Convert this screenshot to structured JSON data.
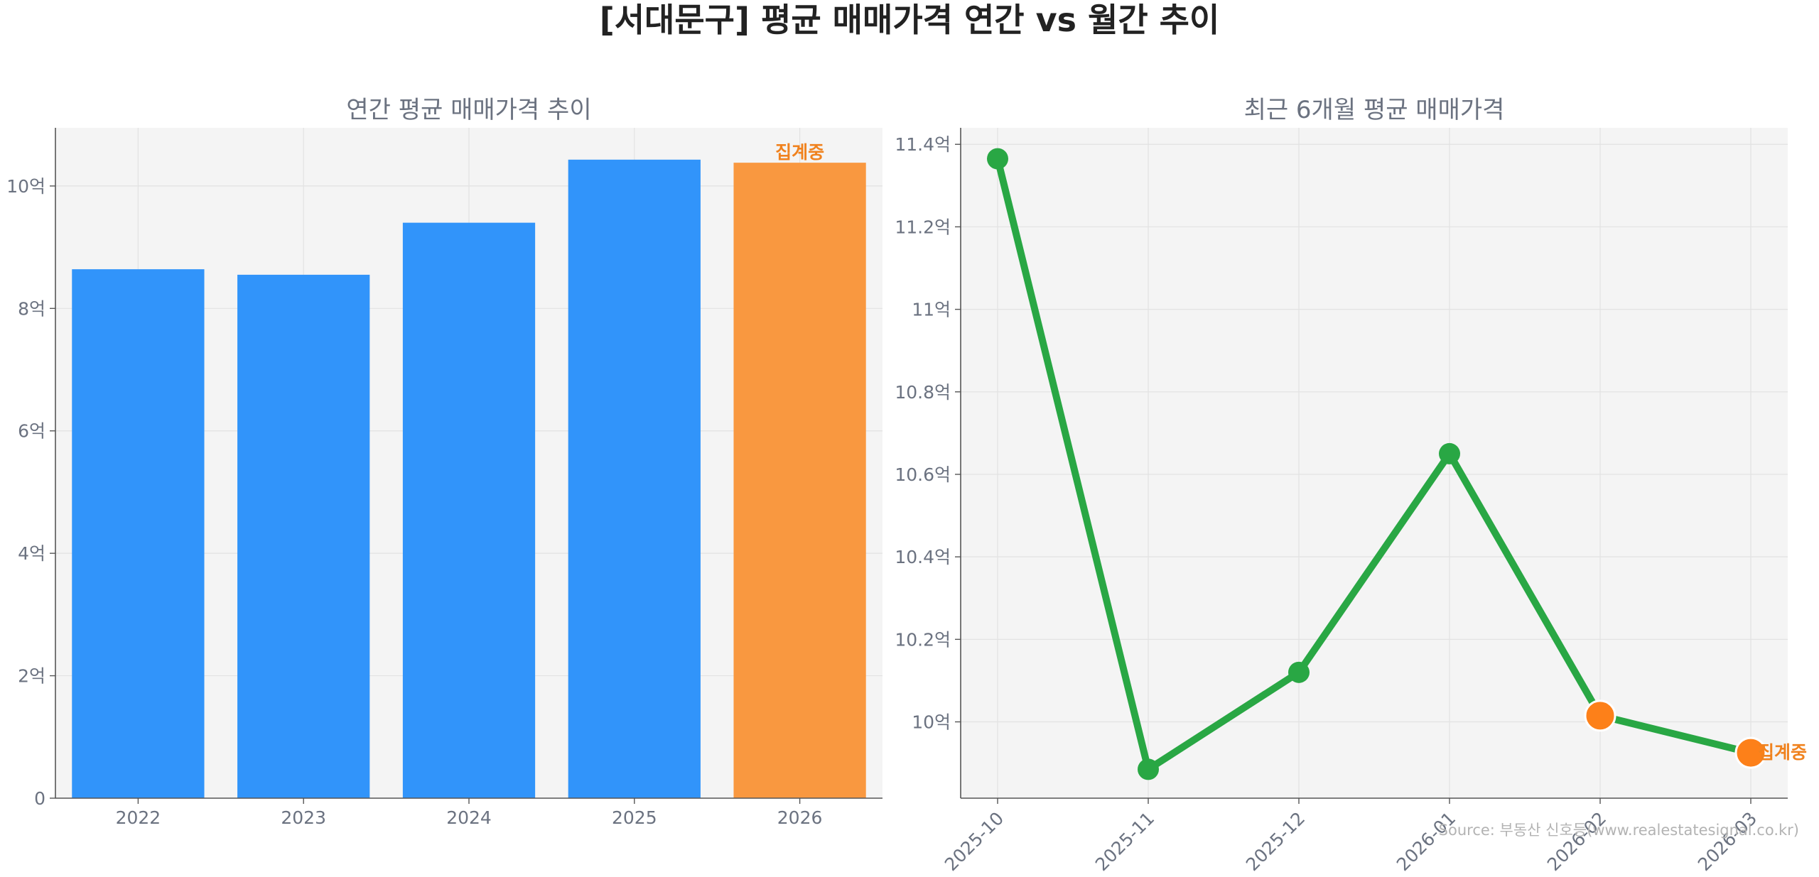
{
  "title": "[서대문구] 평균 매매가격 연간 vs 월간 추이",
  "source": "Source: 부동산 신호등(www.realestatesignal.co.kr)",
  "chart_data": [
    {
      "type": "bar",
      "title": "연간 평균 매매가격 추이",
      "categories": [
        "2022",
        "2023",
        "2024",
        "2025",
        "2026"
      ],
      "values": [
        8.64,
        8.55,
        9.4,
        10.43,
        10.38
      ],
      "ylim": [
        0,
        10.95
      ],
      "yticks": [
        0,
        2,
        4,
        6,
        8,
        10
      ],
      "ytick_labels": [
        "0",
        "2억",
        "4억",
        "6억",
        "8억",
        "10억"
      ],
      "colors": [
        "#3194fa",
        "#3194fa",
        "#3194fa",
        "#3194fa",
        "#f99840"
      ],
      "annotation": {
        "category": "2026",
        "text": "집계중"
      },
      "grid": true
    },
    {
      "type": "line",
      "title": "최근 6개월 평균 매매가격",
      "x": [
        "2025-10",
        "2025-11",
        "2025-12",
        "2026-01",
        "2026-02",
        "2026-03"
      ],
      "values": [
        11.365,
        9.885,
        10.12,
        10.65,
        10.015,
        9.925
      ],
      "ylim": [
        9.815,
        11.44
      ],
      "yticks": [
        10.0,
        10.2,
        10.4,
        10.6,
        10.8,
        11.0,
        11.2,
        11.4
      ],
      "ytick_labels": [
        "10억",
        "10.2억",
        "10.4억",
        "10.6억",
        "10.8억",
        "11억",
        "11.2억",
        "11.4억"
      ],
      "line_color": "#29a744",
      "marker_colors": [
        "#29a744",
        "#29a744",
        "#29a744",
        "#29a744",
        "#fd8019",
        "#fd8019"
      ],
      "annotation": {
        "index": 5,
        "text": "집계중"
      },
      "grid": true
    }
  ]
}
